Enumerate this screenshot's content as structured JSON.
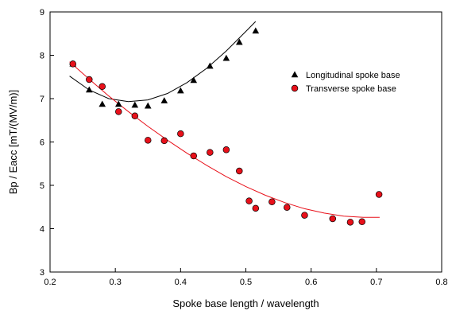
{
  "chart_data": {
    "type": "scatter",
    "xlabel": "Spoke base length / wavelength",
    "ylabel": "Bp / Eacc [mT/(MV/m)]",
    "xlim": [
      0.2,
      0.8
    ],
    "ylim": [
      3,
      9
    ],
    "x_ticks": [
      "0.2",
      "0.3",
      "0.4",
      "0.5",
      "0.6",
      "0.7",
      "0.8"
    ],
    "y_ticks": [
      "3",
      "4",
      "5",
      "6",
      "7",
      "8",
      "9"
    ],
    "grid": false,
    "legend_position": "top-right",
    "series": [
      {
        "name": "Longitudinal spoke base",
        "marker": "triangle",
        "color": "#000000",
        "fit_color": "#000000",
        "points": [
          {
            "x": 0.235,
            "y": 7.8
          },
          {
            "x": 0.26,
            "y": 7.2
          },
          {
            "x": 0.28,
            "y": 6.87
          },
          {
            "x": 0.305,
            "y": 6.87
          },
          {
            "x": 0.33,
            "y": 6.85
          },
          {
            "x": 0.35,
            "y": 6.83
          },
          {
            "x": 0.375,
            "y": 6.95
          },
          {
            "x": 0.4,
            "y": 7.18
          },
          {
            "x": 0.42,
            "y": 7.42
          },
          {
            "x": 0.445,
            "y": 7.75
          },
          {
            "x": 0.47,
            "y": 7.93
          },
          {
            "x": 0.49,
            "y": 8.3
          },
          {
            "x": 0.515,
            "y": 8.56
          }
        ],
        "fit": [
          {
            "x": 0.23,
            "y": 7.52
          },
          {
            "x": 0.26,
            "y": 7.2
          },
          {
            "x": 0.29,
            "y": 7.0
          },
          {
            "x": 0.32,
            "y": 6.93
          },
          {
            "x": 0.35,
            "y": 6.97
          },
          {
            "x": 0.38,
            "y": 7.12
          },
          {
            "x": 0.41,
            "y": 7.37
          },
          {
            "x": 0.44,
            "y": 7.7
          },
          {
            "x": 0.47,
            "y": 8.1
          },
          {
            "x": 0.5,
            "y": 8.55
          },
          {
            "x": 0.515,
            "y": 8.78
          }
        ]
      },
      {
        "name": "Transverse spoke base",
        "marker": "circle",
        "color": "#e8101a",
        "fit_color": "#e8101a",
        "points": [
          {
            "x": 0.235,
            "y": 7.8
          },
          {
            "x": 0.26,
            "y": 7.44
          },
          {
            "x": 0.28,
            "y": 7.28
          },
          {
            "x": 0.305,
            "y": 6.7
          },
          {
            "x": 0.33,
            "y": 6.6
          },
          {
            "x": 0.35,
            "y": 6.04
          },
          {
            "x": 0.375,
            "y": 6.03
          },
          {
            "x": 0.4,
            "y": 6.19
          },
          {
            "x": 0.42,
            "y": 5.68
          },
          {
            "x": 0.445,
            "y": 5.76
          },
          {
            "x": 0.47,
            "y": 5.82
          },
          {
            "x": 0.49,
            "y": 5.33
          },
          {
            "x": 0.505,
            "y": 4.64
          },
          {
            "x": 0.515,
            "y": 4.47
          },
          {
            "x": 0.54,
            "y": 4.62
          },
          {
            "x": 0.563,
            "y": 4.49
          },
          {
            "x": 0.59,
            "y": 4.31
          },
          {
            "x": 0.633,
            "y": 4.23
          },
          {
            "x": 0.66,
            "y": 4.15
          },
          {
            "x": 0.678,
            "y": 4.16
          },
          {
            "x": 0.704,
            "y": 4.79
          }
        ],
        "fit": [
          {
            "x": 0.23,
            "y": 7.85
          },
          {
            "x": 0.26,
            "y": 7.45
          },
          {
            "x": 0.29,
            "y": 7.06
          },
          {
            "x": 0.32,
            "y": 6.7
          },
          {
            "x": 0.35,
            "y": 6.36
          },
          {
            "x": 0.38,
            "y": 6.04
          },
          {
            "x": 0.41,
            "y": 5.74
          },
          {
            "x": 0.44,
            "y": 5.46
          },
          {
            "x": 0.47,
            "y": 5.2
          },
          {
            "x": 0.5,
            "y": 4.97
          },
          {
            "x": 0.53,
            "y": 4.77
          },
          {
            "x": 0.56,
            "y": 4.6
          },
          {
            "x": 0.59,
            "y": 4.46
          },
          {
            "x": 0.62,
            "y": 4.36
          },
          {
            "x": 0.65,
            "y": 4.29
          },
          {
            "x": 0.68,
            "y": 4.26
          },
          {
            "x": 0.705,
            "y": 4.26
          }
        ]
      }
    ]
  }
}
